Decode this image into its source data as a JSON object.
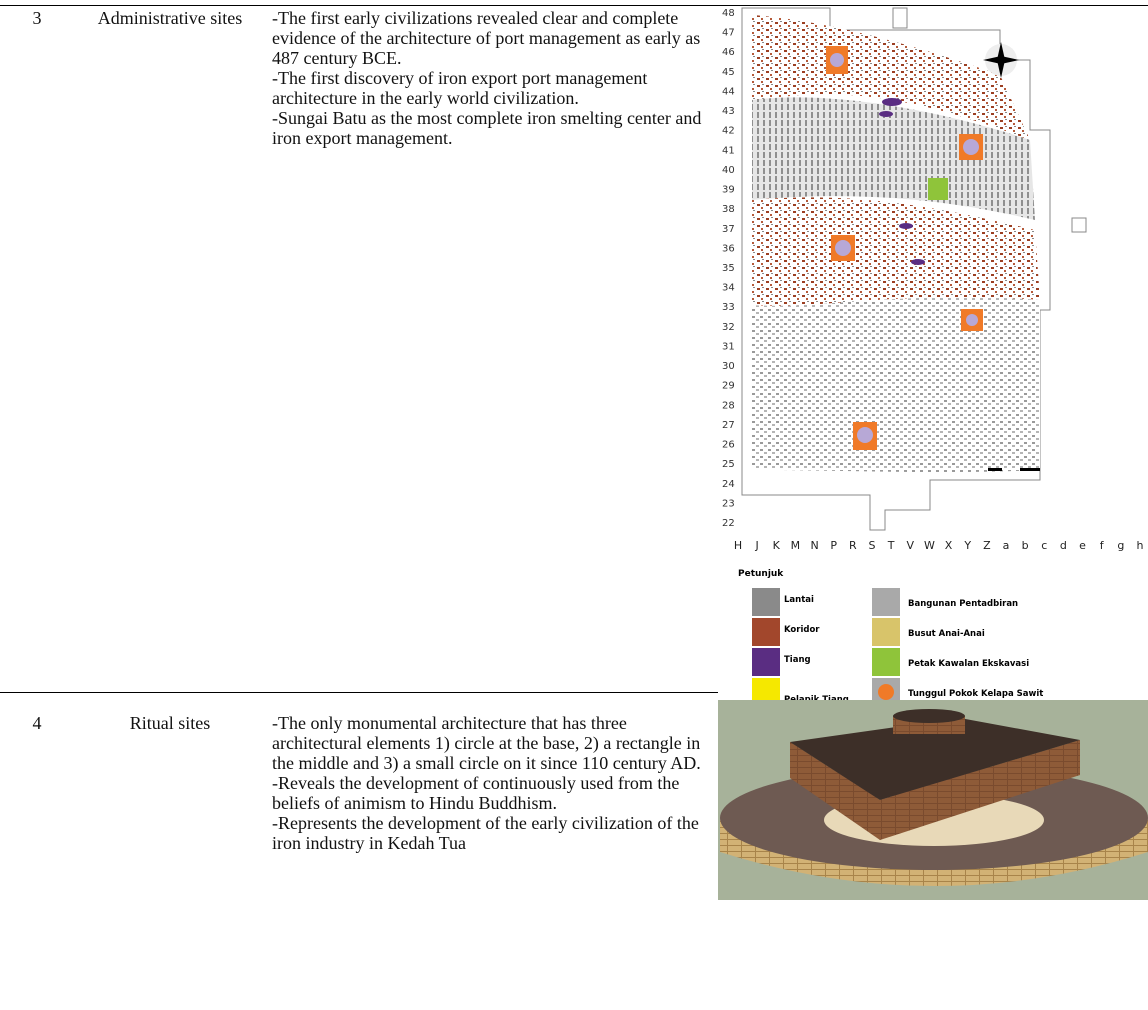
{
  "table": {
    "rows": [
      {
        "number": "3",
        "site": "Administrative sites",
        "description": [
          "-The first early civilizations revealed clear and complete evidence of the architecture of port management as early as 487 century BCE.",
          "-The first discovery of iron export port management architecture in the early world civilization.",
          "-Sungai Batu as the most complete iron smelting center and iron export management."
        ],
        "figure": {
          "row_labels": [
            48,
            47,
            46,
            45,
            44,
            43,
            42,
            41,
            40,
            39,
            38,
            37,
            36,
            35,
            34,
            33,
            32,
            31,
            30,
            29,
            28,
            27,
            26,
            25,
            24,
            23,
            22
          ],
          "column_labels": [
            "H",
            "J",
            "K",
            "M",
            "N",
            "P",
            "R",
            "S",
            "T",
            "V",
            "W",
            "X",
            "Y",
            "Z",
            "a",
            "b",
            "c",
            "d",
            "e",
            "f",
            "g",
            "h"
          ],
          "legend_title": "Petunjuk",
          "legend": [
            {
              "label": "Lantai",
              "color": "#8a8a8a"
            },
            {
              "label": "Koridor",
              "color": "#a2472c"
            },
            {
              "label": "Tiang",
              "color": "#5a2d82"
            },
            {
              "label": "Pelapik Tiang",
              "color": "#f5e800"
            },
            {
              "label": "Bangunan Pentadbiran",
              "color": "#a9a9a9"
            },
            {
              "label": "Busut Anai-Anai",
              "color": "#d8c46a"
            },
            {
              "label": "Petak Kawalan Ekskavasi",
              "color": "#8fc43a"
            },
            {
              "label": "Tunggul Pokok Kelapa Sawit",
              "color": "#f07a28"
            }
          ]
        }
      },
      {
        "number": "4",
        "site": "Ritual sites",
        "description": [
          "-The only monumental architecture that has three architectural elements 1) circle at the base, 2)  a rectangle in the middle and 3) a small circle on it since 110 century AD.",
          "-Reveals the development of continuously used from the beliefs of animism to Hindu Buddhism.",
          "-Represents the development of the early civilization of the iron industry in Kedah Tua"
        ]
      }
    ]
  }
}
